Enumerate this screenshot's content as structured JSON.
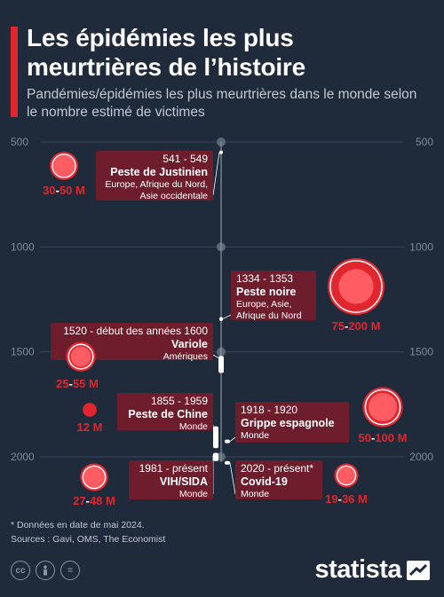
{
  "title": "Les épidémies les plus meurtrières de l’histoire",
  "subtitle": "Pandémies/épidémies les plus meurtrières dans le monde selon le nombre estimé de victimes",
  "footnote": "* Données en date de mai 2024.",
  "sources": "Sources : Gavi, OMS, The Economist",
  "brand": "statista",
  "colors": {
    "background": "#1f2a3a",
    "accent": "#e0262e",
    "box": "#6e1d2c",
    "axis": "#5c6878"
  },
  "icons": {
    "cc": "cc",
    "person": "person-icon",
    "equals": "="
  },
  "chart_data": {
    "type": "timeline-bubble",
    "axis": {
      "min": 500,
      "max": 2000,
      "ticks": [
        500,
        1000,
        1500,
        2000
      ]
    },
    "unit": "M",
    "events": [
      {
        "years": "541 - 549",
        "name": "Peste de Justinien",
        "region": [
          "Europe, Afrique du Nord,",
          "Asie occidentale"
        ],
        "start": 541,
        "end": 549,
        "low": "30",
        "high": "50",
        "low_value": 30,
        "high_value": 50,
        "side": "left"
      },
      {
        "years": "1334 - 1353",
        "name": "Peste noire",
        "region": [
          "Europe, Asie,",
          "Afrique du Nord"
        ],
        "start": 1334,
        "end": 1353,
        "low": "75",
        "high": "200",
        "low_value": 75,
        "high_value": 200,
        "side": "right"
      },
      {
        "years": "1520 - début des années 1600",
        "name": "Variole",
        "region": [
          "Amériques"
        ],
        "start": 1520,
        "end": 1600,
        "low": "25",
        "high": "55",
        "low_value": 25,
        "high_value": 55,
        "side": "left"
      },
      {
        "years": "1855 - 1959",
        "name": "Peste de Chine",
        "region": [
          "Monde"
        ],
        "start": 1855,
        "end": 1959,
        "low": "12",
        "high": "",
        "low_value": 12,
        "high_value": 12,
        "side": "left"
      },
      {
        "years": "1918 - 1920",
        "name": "Grippe espagnole",
        "region": [
          "Monde"
        ],
        "start": 1918,
        "end": 1920,
        "low": "50",
        "high": "100",
        "low_value": 50,
        "high_value": 100,
        "side": "right"
      },
      {
        "years": "1981 - présent",
        "name": "VIH/SIDA",
        "region": [
          "Monde"
        ],
        "start": 1981,
        "end": 2024,
        "low": "27",
        "high": "48",
        "low_value": 27,
        "high_value": 48,
        "side": "left"
      },
      {
        "years": "2020 - présent*",
        "name": "Covid-19",
        "region": [
          "Monde"
        ],
        "start": 2020,
        "end": 2024,
        "low": "19",
        "high": "36",
        "low_value": 19,
        "high_value": 36,
        "side": "right"
      }
    ]
  }
}
